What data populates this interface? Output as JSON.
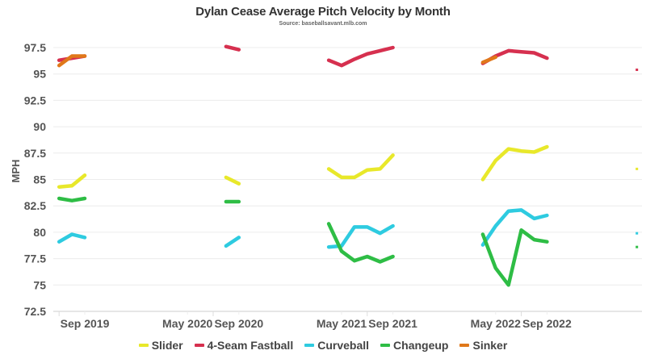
{
  "chart_data": {
    "type": "line",
    "title": "Dylan Cease Average Pitch Velocity by Month",
    "subtitle": "Source: baseballsavant.mlb.com",
    "xlabel": "",
    "ylabel": "MPH",
    "ylim": [
      72.5,
      98.5
    ],
    "yticks": [
      "97.5",
      "95",
      "92.5",
      "90",
      "87.5",
      "85",
      "82.5",
      "80",
      "77.5",
      "75",
      "72.5"
    ],
    "ytick_values": [
      97.5,
      95,
      92.5,
      90,
      87.5,
      85,
      82.5,
      80,
      77.5,
      75,
      72.5
    ],
    "xticks": [
      {
        "label": "Sep 2019",
        "month_index": 0
      },
      {
        "label": "May 2020",
        "month_index": 8
      },
      {
        "label": "Sep 2020",
        "month_index": 12
      },
      {
        "label": "May 2021",
        "month_index": 20
      },
      {
        "label": "Sep 2021",
        "month_index": 24
      },
      {
        "label": "May 2022",
        "month_index": 32
      },
      {
        "label": "Sep 2022",
        "month_index": 36
      }
    ],
    "year_boundaries": [
      -2,
      10,
      22,
      34,
      46
    ],
    "x_range_months": [
      -2,
      43.5
    ],
    "grid": true,
    "legend_position": "bottom",
    "series": [
      {
        "name": "Slider",
        "color": "#e8e82a",
        "segments": [
          [
            [
              -2,
              84.3
            ],
            [
              -1,
              84.4
            ],
            [
              0,
              85.4
            ]
          ],
          [
            [
              11,
              85.2
            ],
            [
              12,
              84.6
            ]
          ],
          [
            [
              19,
              86.0
            ],
            [
              20,
              85.2
            ],
            [
              21,
              85.2
            ],
            [
              22,
              85.9
            ],
            [
              23,
              86.0
            ],
            [
              24,
              87.3
            ]
          ],
          [
            [
              31,
              85.0
            ],
            [
              32,
              86.8
            ],
            [
              33,
              87.9
            ],
            [
              34,
              87.7
            ],
            [
              35,
              87.6
            ],
            [
              36,
              88.1
            ]
          ]
        ],
        "points": [
          [
            43,
            86.0
          ]
        ]
      },
      {
        "name": "4-Seam Fastball",
        "color": "#d6304f",
        "segments": [
          [
            [
              -2,
              96.3
            ],
            [
              -1,
              96.5
            ],
            [
              0,
              96.7
            ]
          ],
          [
            [
              11,
              97.6
            ],
            [
              12,
              97.3
            ]
          ],
          [
            [
              19,
              96.3
            ],
            [
              20,
              95.8
            ],
            [
              21,
              96.4
            ],
            [
              22,
              96.9
            ],
            [
              23,
              97.2
            ],
            [
              24,
              97.5
            ]
          ],
          [
            [
              31,
              96.0
            ],
            [
              32,
              96.7
            ],
            [
              33,
              97.2
            ],
            [
              34,
              97.1
            ],
            [
              35,
              97.0
            ],
            [
              36,
              96.5
            ]
          ]
        ],
        "points": [
          [
            43,
            95.4
          ]
        ]
      },
      {
        "name": "Curveball",
        "color": "#2ecbe0",
        "segments": [
          [
            [
              -2,
              79.1
            ],
            [
              -1,
              79.8
            ],
            [
              0,
              79.5
            ]
          ],
          [
            [
              11,
              78.7
            ],
            [
              12,
              79.5
            ]
          ],
          [
            [
              19,
              78.6
            ],
            [
              20,
              78.7
            ],
            [
              21,
              80.5
            ],
            [
              22,
              80.5
            ],
            [
              23,
              79.9
            ],
            [
              24,
              80.6
            ]
          ],
          [
            [
              31,
              78.8
            ],
            [
              32,
              80.6
            ],
            [
              33,
              82.0
            ],
            [
              34,
              82.1
            ],
            [
              35,
              81.3
            ],
            [
              36,
              81.6
            ]
          ]
        ],
        "points": [
          [
            43,
            79.9
          ]
        ]
      },
      {
        "name": "Changeup",
        "color": "#2ebd45",
        "segments": [
          [
            [
              -2,
              83.2
            ],
            [
              -1,
              83.0
            ],
            [
              0,
              83.2
            ]
          ],
          [
            [
              11,
              82.9
            ],
            [
              12,
              82.9
            ]
          ],
          [
            [
              19,
              80.8
            ],
            [
              20,
              78.2
            ],
            [
              21,
              77.3
            ],
            [
              22,
              77.7
            ],
            [
              23,
              77.2
            ],
            [
              24,
              77.7
            ]
          ],
          [
            [
              31,
              79.8
            ],
            [
              32,
              76.6
            ],
            [
              33,
              75.0
            ],
            [
              34,
              80.2
            ],
            [
              35,
              79.3
            ],
            [
              36,
              79.1
            ]
          ]
        ],
        "points": [
          [
            43,
            78.6
          ]
        ]
      },
      {
        "name": "Sinker",
        "color": "#e0781a",
        "segments": [
          [
            [
              -2,
              95.8
            ],
            [
              -1,
              96.7
            ],
            [
              0,
              96.7
            ]
          ],
          [
            [
              31,
              96.1
            ],
            [
              32,
              96.6
            ]
          ]
        ],
        "points": []
      }
    ]
  }
}
